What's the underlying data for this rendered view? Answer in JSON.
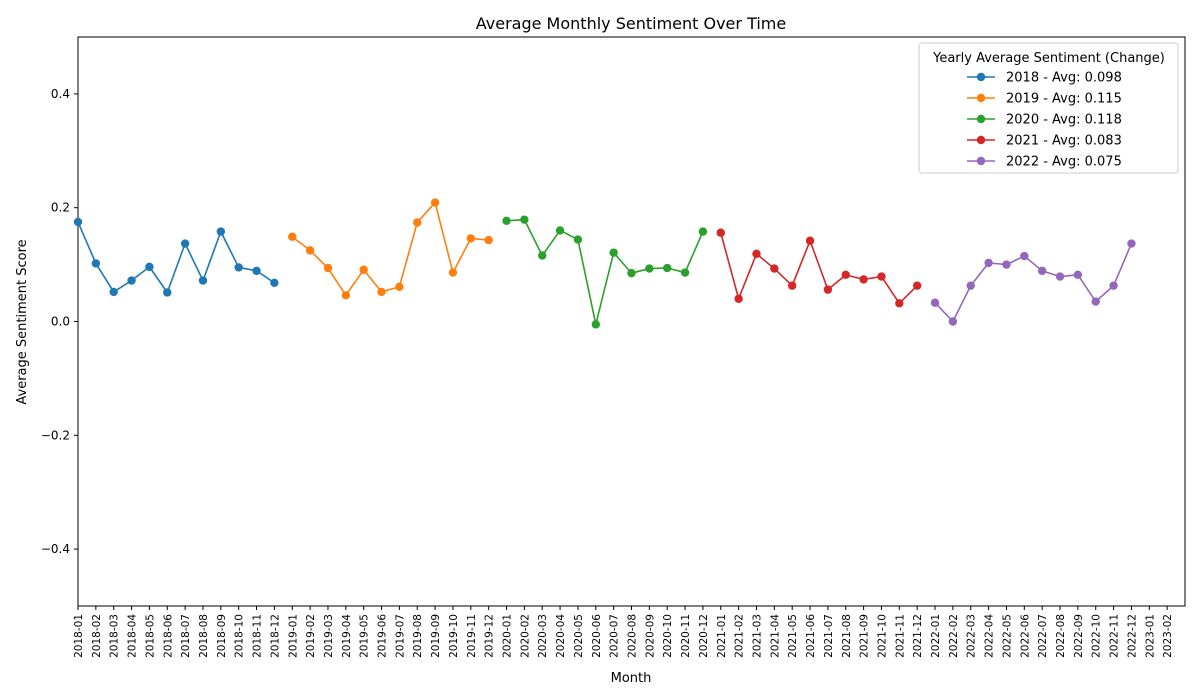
{
  "chart_data": {
    "type": "line",
    "title": "Average Monthly Sentiment Over Time",
    "xlabel": "Month",
    "ylabel": "Average Sentiment Score",
    "ylim": [
      -0.5,
      0.5
    ],
    "yticks": [
      -0.4,
      -0.2,
      0.0,
      0.2,
      0.4
    ],
    "ytick_labels": [
      "−0.4",
      "−0.2",
      "0.0",
      "0.2",
      "0.4"
    ],
    "x_ticks": [
      "2018-01",
      "2018-02",
      "2018-03",
      "2018-04",
      "2018-05",
      "2018-06",
      "2018-07",
      "2018-08",
      "2018-09",
      "2018-10",
      "2018-11",
      "2018-12",
      "2019-01",
      "2019-02",
      "2019-03",
      "2019-04",
      "2019-05",
      "2019-06",
      "2019-07",
      "2019-08",
      "2019-09",
      "2019-10",
      "2019-11",
      "2019-12",
      "2020-01",
      "2020-02",
      "2020-03",
      "2020-04",
      "2020-05",
      "2020-06",
      "2020-07",
      "2020-08",
      "2020-09",
      "2020-10",
      "2020-11",
      "2020-12",
      "2021-01",
      "2021-02",
      "2021-03",
      "2021-04",
      "2021-05",
      "2021-06",
      "2021-07",
      "2021-08",
      "2021-09",
      "2021-10",
      "2021-11",
      "2021-12",
      "2022-01",
      "2022-02",
      "2022-03",
      "2022-04",
      "2022-05",
      "2022-06",
      "2022-07",
      "2022-08",
      "2022-09",
      "2022-10",
      "2022-11",
      "2022-12",
      "2023-01",
      "2023-02"
    ],
    "xlim": [
      "2018-01",
      "2023-03"
    ],
    "grid": false,
    "legend_title": "Yearly Average Sentiment (Change)",
    "legend_position": "top-right",
    "series": [
      {
        "name": "2018 - Avg: 0.098",
        "color": "#1f77b4",
        "x": [
          "2018-01",
          "2018-02",
          "2018-03",
          "2018-04",
          "2018-05",
          "2018-06",
          "2018-07",
          "2018-08",
          "2018-09",
          "2018-10",
          "2018-11",
          "2018-12"
        ],
        "values": [
          0.175,
          0.102,
          0.052,
          0.072,
          0.096,
          0.051,
          0.137,
          0.072,
          0.158,
          0.095,
          0.089,
          0.068
        ]
      },
      {
        "name": "2019 - Avg: 0.115",
        "color": "#ff7f0e",
        "x": [
          "2019-01",
          "2019-02",
          "2019-03",
          "2019-04",
          "2019-05",
          "2019-06",
          "2019-07",
          "2019-08",
          "2019-09",
          "2019-10",
          "2019-11",
          "2019-12"
        ],
        "values": [
          0.149,
          0.125,
          0.094,
          0.046,
          0.091,
          0.052,
          0.061,
          0.174,
          0.209,
          0.086,
          0.146,
          0.143
        ]
      },
      {
        "name": "2020 - Avg: 0.118",
        "color": "#2ca02c",
        "x": [
          "2020-01",
          "2020-02",
          "2020-03",
          "2020-04",
          "2020-05",
          "2020-06",
          "2020-07",
          "2020-08",
          "2020-09",
          "2020-10",
          "2020-11",
          "2020-12"
        ],
        "values": [
          0.177,
          0.179,
          0.116,
          0.16,
          0.144,
          -0.005,
          0.121,
          0.085,
          0.093,
          0.094,
          0.086,
          0.158
        ]
      },
      {
        "name": "2021 - Avg: 0.083",
        "color": "#d62728",
        "x": [
          "2021-01",
          "2021-02",
          "2021-03",
          "2021-04",
          "2021-05",
          "2021-06",
          "2021-07",
          "2021-08",
          "2021-09",
          "2021-10",
          "2021-11",
          "2021-12"
        ],
        "values": [
          0.156,
          0.04,
          0.119,
          0.093,
          0.063,
          0.142,
          0.056,
          0.082,
          0.074,
          0.079,
          0.032,
          0.063
        ]
      },
      {
        "name": "2022 - Avg: 0.075",
        "color": "#9467bd",
        "x": [
          "2022-01",
          "2022-02",
          "2022-03",
          "2022-04",
          "2022-05",
          "2022-06",
          "2022-07",
          "2022-08",
          "2022-09",
          "2022-10",
          "2022-11",
          "2022-12"
        ],
        "values": [
          0.033,
          0.0,
          0.063,
          0.103,
          0.1,
          0.115,
          0.089,
          0.079,
          0.082,
          0.035,
          0.063,
          0.137
        ]
      }
    ]
  }
}
